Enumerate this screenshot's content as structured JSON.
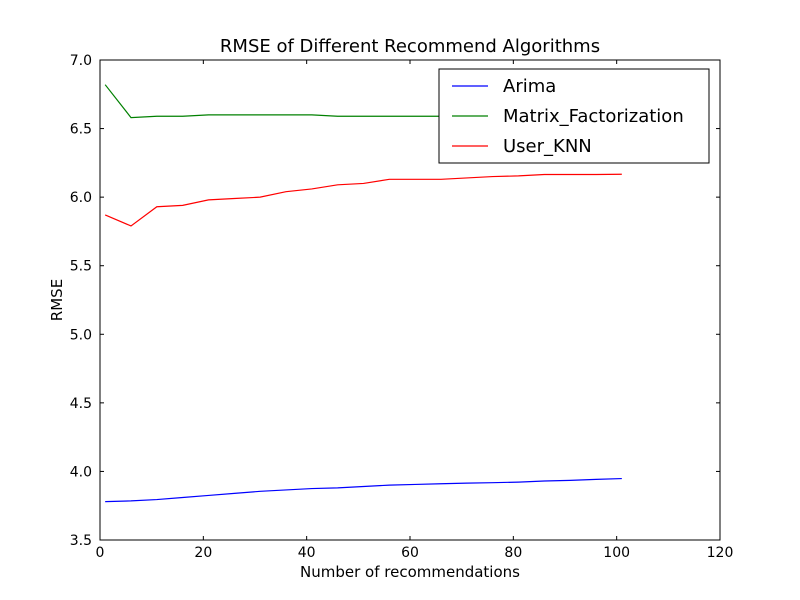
{
  "chart_data": {
    "type": "line",
    "title": "RMSE of Different Recommend Algorithms",
    "xlabel": "Number of recommendations",
    "ylabel": "RMSE",
    "xlim": [
      0,
      120
    ],
    "ylim": [
      3.5,
      7.0
    ],
    "xticks": [
      0,
      20,
      40,
      60,
      80,
      100,
      120
    ],
    "yticks": [
      3.5,
      4.0,
      4.5,
      5.0,
      5.5,
      6.0,
      6.5,
      7.0
    ],
    "xtick_labels": [
      "0",
      "20",
      "40",
      "60",
      "80",
      "100",
      "120"
    ],
    "ytick_labels": [
      "3.5",
      "4.0",
      "4.5",
      "5.0",
      "5.5",
      "6.0",
      "6.5",
      "7.0"
    ],
    "grid": false,
    "legend_position": "top-right",
    "x": [
      1,
      6,
      11,
      16,
      21,
      26,
      31,
      36,
      41,
      46,
      51,
      56,
      61,
      66,
      71,
      76,
      81,
      86,
      91,
      96,
      101
    ],
    "series": [
      {
        "name": "Arima",
        "color": "#0000ff",
        "values": [
          3.78,
          3.785,
          3.795,
          3.81,
          3.825,
          3.84,
          3.855,
          3.865,
          3.875,
          3.88,
          3.89,
          3.9,
          3.905,
          3.91,
          3.915,
          3.918,
          3.922,
          3.93,
          3.935,
          3.942,
          3.948
        ]
      },
      {
        "name": "Matrix_Factorization",
        "color": "#008000",
        "values": [
          6.82,
          6.58,
          6.59,
          6.59,
          6.6,
          6.6,
          6.6,
          6.6,
          6.6,
          6.59,
          6.59,
          6.59,
          6.59,
          6.59,
          6.59,
          6.59,
          6.59,
          6.59,
          6.59,
          6.59,
          6.59
        ]
      },
      {
        "name": "User_KNN",
        "color": "#ff0000",
        "values": [
          5.87,
          5.79,
          5.93,
          5.94,
          5.98,
          5.99,
          6.0,
          6.04,
          6.06,
          6.09,
          6.1,
          6.13,
          6.13,
          6.13,
          6.14,
          6.15,
          6.155,
          6.165,
          6.165,
          6.165,
          6.167
        ]
      }
    ]
  }
}
